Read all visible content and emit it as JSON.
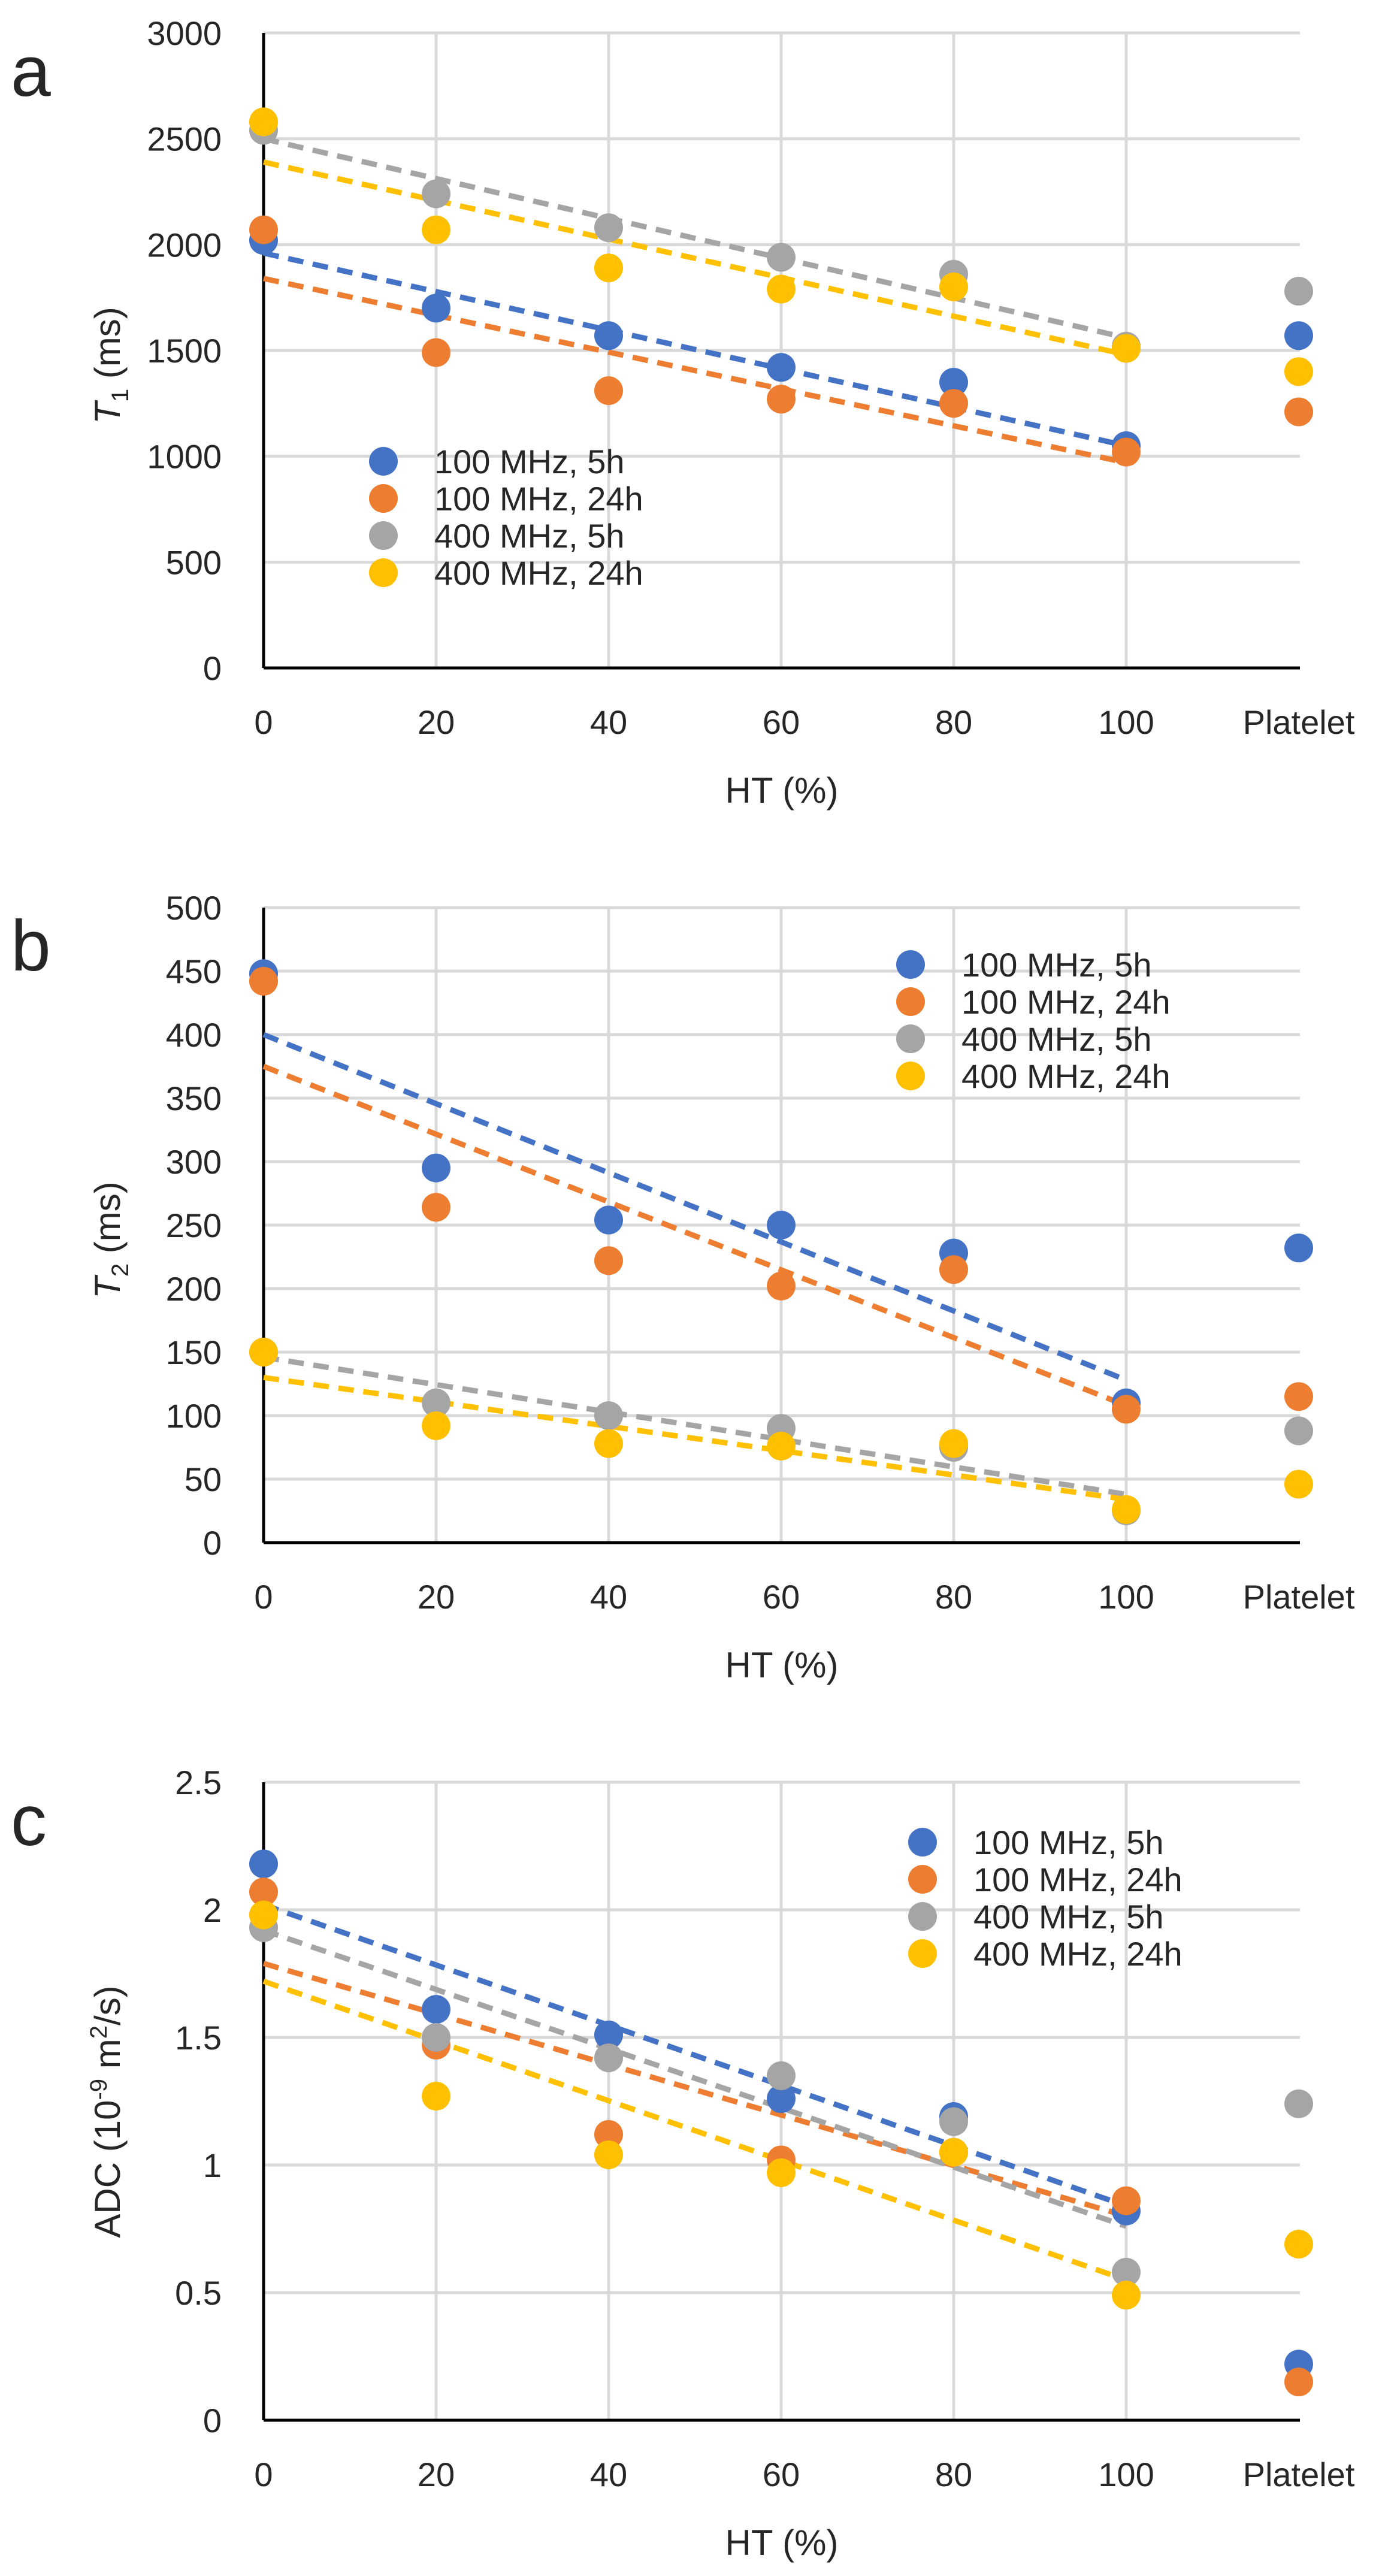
{
  "colors": {
    "series_100_5h": "#4472C4",
    "series_100_24h": "#ED7D31",
    "series_400_5h": "#A5A5A5",
    "series_400_24h": "#FFC000"
  },
  "chart_data": [
    {
      "type": "scatter",
      "panel": "a",
      "ylabel_italic": "T",
      "ylabel_sub": "1",
      "ylabel_rest": " (ms)",
      "xlabel": "HT (%)",
      "categories": [
        "0",
        "20",
        "40",
        "60",
        "80",
        "100",
        "Platelet"
      ],
      "ylim": [
        0,
        3000
      ],
      "yticks": [
        0,
        500,
        1000,
        1500,
        2000,
        2500,
        3000
      ],
      "legend_position": "lower-left",
      "series": [
        {
          "name": "100 MHz, 5h",
          "color_key": "series_100_5h",
          "values": [
            2020,
            1700,
            1570,
            1420,
            1350,
            1050,
            1570
          ],
          "trend": [
            1960,
            1050
          ]
        },
        {
          "name": "100 MHz, 24h",
          "color_key": "series_100_24h",
          "values": [
            2070,
            1490,
            1310,
            1270,
            1250,
            1020,
            1210
          ],
          "trend": [
            1840,
            970
          ]
        },
        {
          "name": "400 MHz, 5h",
          "color_key": "series_400_5h",
          "values": [
            2540,
            2240,
            2080,
            1940,
            1860,
            1520,
            1780
          ],
          "trend": [
            2500,
            1560
          ]
        },
        {
          "name": "400 MHz, 24h",
          "color_key": "series_400_24h",
          "values": [
            2580,
            2070,
            1890,
            1790,
            1800,
            1510,
            1400
          ],
          "trend": [
            2390,
            1480
          ]
        }
      ]
    },
    {
      "type": "scatter",
      "panel": "b",
      "ylabel_italic": "T",
      "ylabel_sub": "2",
      "ylabel_rest": " (ms)",
      "xlabel": "HT (%)",
      "categories": [
        "0",
        "20",
        "40",
        "60",
        "80",
        "100",
        "Platelet"
      ],
      "ylim": [
        0,
        500
      ],
      "yticks": [
        0,
        50,
        100,
        150,
        200,
        250,
        300,
        350,
        400,
        450,
        500
      ],
      "legend_position": "top-right",
      "series": [
        {
          "name": "100 MHz, 5h",
          "color_key": "series_100_5h",
          "values": [
            448,
            295,
            254,
            250,
            228,
            110,
            232
          ],
          "trend": [
            400,
            128
          ]
        },
        {
          "name": "100 MHz, 24h",
          "color_key": "series_100_24h",
          "values": [
            442,
            264,
            222,
            202,
            215,
            105,
            115
          ],
          "trend": [
            375,
            108
          ]
        },
        {
          "name": "400 MHz, 5h",
          "color_key": "series_400_5h",
          "values": [
            150,
            110,
            100,
            90,
            75,
            25,
            88
          ],
          "trend": [
            146,
            38
          ]
        },
        {
          "name": "400 MHz, 24h",
          "color_key": "series_400_24h",
          "values": [
            150,
            92,
            78,
            76,
            78,
            26,
            46
          ],
          "trend": [
            130,
            34
          ]
        }
      ]
    },
    {
      "type": "scatter",
      "panel": "c",
      "ylabel_text": "ADC (10",
      "ylabel_sup1": "-9",
      "ylabel_mid": " m",
      "ylabel_sup2": "2",
      "ylabel_end": "/s)",
      "xlabel": "HT (%)",
      "categories": [
        "0",
        "20",
        "40",
        "60",
        "80",
        "100",
        "Platelet"
      ],
      "ylim": [
        0,
        2.5
      ],
      "yticks": [
        0,
        0.5,
        1,
        1.5,
        2,
        2.5
      ],
      "ytick_labels": [
        "0",
        "0.5",
        "1",
        "1.5",
        "2",
        "2.5"
      ],
      "legend_position": "top-right",
      "series": [
        {
          "name": "100 MHz, 5h",
          "color_key": "series_100_5h",
          "values": [
            2.18,
            1.61,
            1.51,
            1.26,
            1.19,
            0.82,
            0.22
          ],
          "trend": [
            2.02,
            0.84
          ]
        },
        {
          "name": "100 MHz, 24h",
          "color_key": "series_100_24h",
          "values": [
            2.07,
            1.47,
            1.12,
            1.02,
            1.05,
            0.86,
            0.15
          ],
          "trend": [
            1.79,
            0.8
          ]
        },
        {
          "name": "400 MHz, 5h",
          "color_key": "series_400_5h",
          "values": [
            1.93,
            1.5,
            1.42,
            1.35,
            1.17,
            0.58,
            1.24
          ],
          "trend": [
            1.92,
            0.76
          ]
        },
        {
          "name": "400 MHz, 24h",
          "color_key": "series_400_24h",
          "values": [
            1.98,
            1.27,
            1.04,
            0.97,
            1.05,
            0.49,
            0.69
          ],
          "trend": [
            1.72,
            0.55
          ]
        }
      ]
    }
  ]
}
